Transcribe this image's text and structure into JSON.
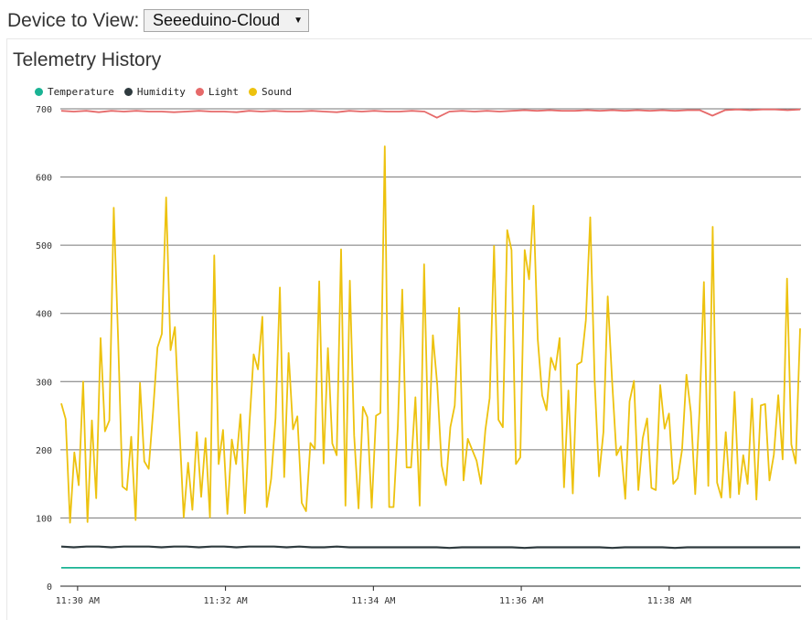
{
  "header": {
    "device_label": "Device to View:",
    "device_selected": "Seeeduino-Cloud"
  },
  "panel": {
    "title": "Telemetry History"
  },
  "chart_data": {
    "type": "line",
    "title": "Telemetry History",
    "xlabel": "",
    "ylabel": "",
    "ylim": [
      0,
      700
    ],
    "yticks": [
      0,
      100,
      200,
      300,
      400,
      500,
      600,
      700
    ],
    "xlim": [
      "11:29:46",
      "11:39:47"
    ],
    "xticks": [
      "11:30 AM",
      "11:32 AM",
      "11:34 AM",
      "11:36 AM",
      "11:38 AM"
    ],
    "grid": true,
    "legend_position": "top-left",
    "series": [
      {
        "name": "Temperature",
        "color": "#1ab394",
        "values": [
          27,
          27,
          27,
          27,
          27,
          27,
          27,
          27,
          27,
          27,
          27,
          27,
          27,
          27,
          27,
          27,
          27,
          27,
          27,
          27,
          27,
          27,
          27,
          27,
          27,
          27,
          27,
          27,
          27,
          27,
          27,
          27,
          27,
          27,
          27,
          27,
          27,
          27,
          27,
          27,
          27,
          27,
          27,
          27,
          27,
          27,
          27,
          27,
          27,
          27,
          27,
          27,
          27,
          27,
          27,
          27,
          27,
          27,
          27,
          27
        ]
      },
      {
        "name": "Humidity",
        "color": "#2f3b3f",
        "values": [
          58,
          57,
          58,
          58,
          57,
          58,
          58,
          58,
          57,
          58,
          58,
          57,
          58,
          58,
          57,
          58,
          58,
          58,
          57,
          58,
          57,
          57,
          58,
          57,
          57,
          57,
          57,
          57,
          57,
          57,
          57,
          56,
          57,
          57,
          57,
          57,
          57,
          56,
          57,
          57,
          57,
          57,
          57,
          57,
          56,
          57,
          57,
          57,
          57,
          56,
          57,
          57,
          57,
          57,
          57,
          57,
          57,
          57,
          57,
          57
        ]
      },
      {
        "name": "Light",
        "color": "#e66a6a",
        "values": [
          697,
          696,
          697,
          695,
          697,
          696,
          697,
          696,
          696,
          695,
          696,
          697,
          696,
          696,
          695,
          697,
          696,
          697,
          696,
          696,
          697,
          696,
          695,
          697,
          696,
          697,
          696,
          696,
          697,
          696,
          687,
          696,
          697,
          696,
          697,
          696,
          697,
          698,
          697,
          698,
          697,
          697,
          698,
          697,
          698,
          697,
          698,
          697,
          698,
          697,
          698,
          698,
          690,
          698,
          699,
          698,
          699,
          699,
          698,
          699
        ]
      },
      {
        "name": "Sound",
        "color": "#edc20f",
        "values": [
          268,
          245,
          93,
          196,
          148,
          300,
          94,
          243,
          129,
          364,
          227,
          243,
          555,
          362,
          146,
          141,
          219,
          97,
          298,
          183,
          172,
          256,
          350,
          370,
          570,
          346,
          380,
          236,
          101,
          181,
          112,
          226,
          131,
          217,
          101,
          485,
          179,
          229,
          106,
          215,
          179,
          252,
          107,
          233,
          340,
          318,
          395,
          116,
          157,
          246,
          438,
          160,
          342,
          230,
          249,
          122,
          110,
          210,
          201,
          447,
          180,
          349,
          209,
          192,
          494,
          118,
          448,
          221,
          114,
          263,
          248,
          115,
          250,
          254,
          645,
          116,
          116,
          235,
          435,
          174,
          174,
          277,
          118,
          472,
          200,
          368,
          295,
          177,
          148,
          233,
          265,
          408,
          155,
          216,
          200,
          184,
          150,
          229,
          276,
          499,
          244,
          233,
          522,
          493,
          179,
          189,
          493,
          450,
          558,
          362,
          280,
          258,
          335,
          317,
          364,
          145,
          287,
          136,
          325,
          329,
          390,
          541,
          302,
          161,
          226,
          425,
          301,
          192,
          205,
          128,
          271,
          301,
          141,
          217,
          246,
          144,
          141,
          295,
          231,
          253,
          150,
          158,
          200,
          310,
          255,
          135,
          257,
          446,
          147,
          527,
          152,
          130,
          226,
          130,
          285,
          135,
          192,
          150,
          275,
          127,
          265,
          267,
          155,
          193,
          280,
          186,
          451,
          208,
          180,
          378
        ]
      }
    ]
  }
}
